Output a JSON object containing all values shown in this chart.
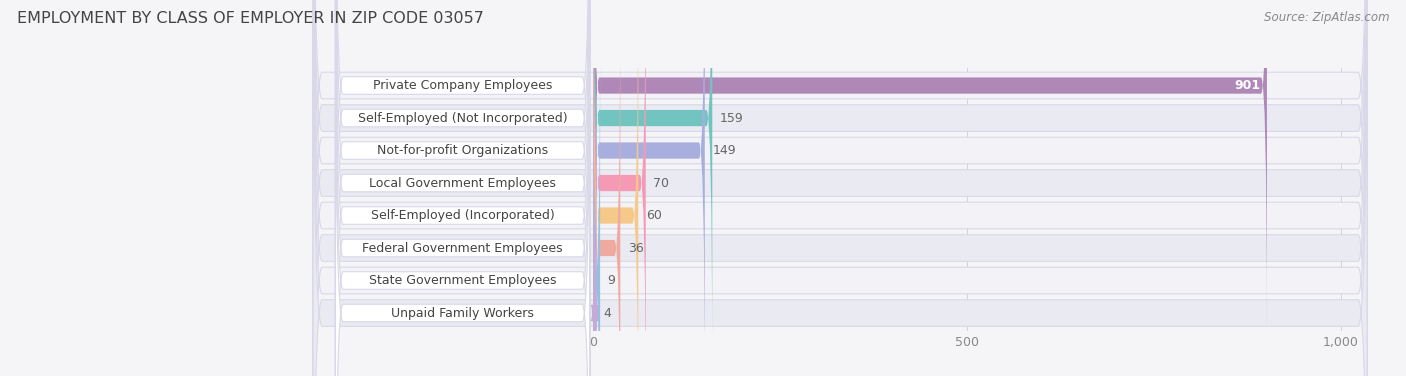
{
  "title": "EMPLOYMENT BY CLASS OF EMPLOYER IN ZIP CODE 03057",
  "source": "Source: ZipAtlas.com",
  "categories": [
    "Private Company Employees",
    "Self-Employed (Not Incorporated)",
    "Not-for-profit Organizations",
    "Local Government Employees",
    "Self-Employed (Incorporated)",
    "Federal Government Employees",
    "State Government Employees",
    "Unpaid Family Workers"
  ],
  "values": [
    901,
    159,
    149,
    70,
    60,
    36,
    9,
    4
  ],
  "bar_colors": [
    "#b088b8",
    "#72c4c0",
    "#a8aedd",
    "#f599b4",
    "#f5c98a",
    "#eeaaa0",
    "#96c0e0",
    "#c4aad8"
  ],
  "value_label_color_inside": "#ffffff",
  "value_label_color_outside": "#666666",
  "xlim_max": 1000,
  "xticks": [
    0,
    500,
    1000
  ],
  "bg_color": "#f5f5f8",
  "row_bg_odd": "#f2f2f7",
  "row_bg_even": "#eaeaf2",
  "row_border_color": "#d8d8e8",
  "grid_color": "#d0d0e0",
  "title_fontsize": 11.5,
  "bar_fontsize": 9,
  "label_fontsize": 9,
  "source_fontsize": 8.5,
  "title_color": "#444444",
  "source_color": "#888888",
  "tick_color": "#888888"
}
